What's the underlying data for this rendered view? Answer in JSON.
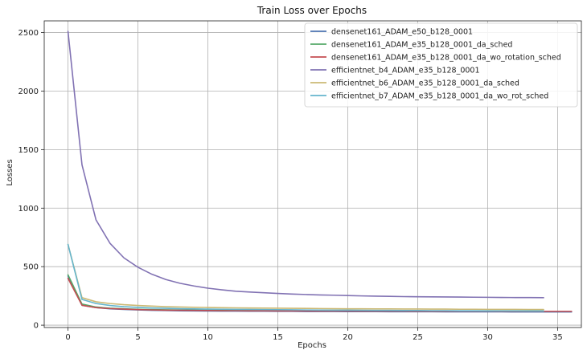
{
  "chart_data": {
    "type": "line",
    "title": "Train Loss over Epochs",
    "xlabel": "Epochs",
    "ylabel": "Losses",
    "xlim": [
      -1.7,
      36.7
    ],
    "ylim": [
      -20,
      2600
    ],
    "xticks": [
      0,
      5,
      10,
      15,
      20,
      25,
      30,
      35
    ],
    "yticks": [
      0,
      500,
      1000,
      1500,
      2000,
      2500
    ],
    "grid": true,
    "legend_position": "top-right",
    "series": [
      {
        "name": "densenet161_ADAM_e50_b128_0001",
        "color": "#4c72b0",
        "x": [
          0,
          1,
          2,
          3,
          4,
          5,
          6,
          7,
          8,
          9,
          10,
          11,
          12,
          13,
          14,
          15,
          16,
          17,
          18,
          19,
          20,
          21,
          22,
          23,
          24,
          25,
          26,
          27,
          28,
          29,
          30,
          31,
          32,
          33,
          34,
          35,
          36
        ],
        "y": [
          420,
          170,
          150,
          140,
          135,
          130,
          127,
          125,
          123,
          122,
          121,
          120,
          120,
          119,
          119,
          118,
          118,
          117,
          117,
          117,
          116,
          116,
          116,
          115,
          115,
          115,
          115,
          114,
          114,
          114,
          114,
          114,
          113,
          113,
          113,
          113,
          113
        ]
      },
      {
        "name": "densenet161_ADAM_e35_b128_0001_da_sched",
        "color": "#55a868",
        "x": [
          0,
          1,
          2,
          3,
          4,
          5,
          6,
          7,
          8,
          9,
          10,
          11,
          12,
          13,
          14,
          15,
          16,
          17,
          18,
          19,
          20,
          21,
          22,
          23,
          24,
          25,
          26,
          27,
          28,
          29,
          30,
          31,
          32,
          33,
          34
        ],
        "y": [
          430,
          180,
          155,
          145,
          140,
          136,
          133,
          131,
          130,
          129,
          128,
          127,
          127,
          126,
          126,
          125,
          125,
          125,
          124,
          124,
          124,
          123,
          123,
          123,
          123,
          122,
          122,
          122,
          122,
          122,
          122,
          121,
          121,
          121,
          121
        ]
      },
      {
        "name": "densenet161_ADAM_e35_b128_0001_da_wo_rotation_sched",
        "color": "#c44e52",
        "x": [
          0,
          1,
          2,
          3,
          4,
          5,
          6,
          7,
          8,
          9,
          10,
          11,
          12,
          13,
          14,
          15,
          16,
          17,
          18,
          19,
          20,
          21,
          22,
          23,
          24,
          25,
          26,
          27,
          28,
          29,
          30,
          31,
          32,
          33,
          34,
          35,
          36
        ],
        "y": [
          400,
          170,
          150,
          142,
          137,
          133,
          130,
          128,
          127,
          126,
          125,
          124,
          124,
          123,
          123,
          122,
          122,
          122,
          121,
          121,
          121,
          120,
          120,
          120,
          120,
          119,
          119,
          119,
          119,
          119,
          119,
          118,
          118,
          118,
          118,
          118,
          118
        ]
      },
      {
        "name": "efficientnet_b4_ADAM_e35_b128_0001",
        "color": "#8172b3",
        "x": [
          0,
          1,
          2,
          3,
          4,
          5,
          6,
          7,
          8,
          9,
          10,
          11,
          12,
          13,
          14,
          15,
          16,
          17,
          18,
          19,
          20,
          21,
          22,
          23,
          24,
          25,
          26,
          27,
          28,
          29,
          30,
          31,
          32,
          33,
          34
        ],
        "y": [
          2510,
          1370,
          900,
          700,
          575,
          495,
          435,
          390,
          358,
          335,
          316,
          302,
          290,
          283,
          277,
          271,
          266,
          262,
          258,
          256,
          253,
          250,
          248,
          246,
          244,
          243,
          242,
          241,
          240,
          239,
          238,
          237,
          236,
          236,
          235
        ]
      },
      {
        "name": "efficientnet_b6_ADAM_e35_b128_0001_da_sched",
        "color": "#ccb974",
        "x": [
          0,
          1,
          2,
          3,
          4,
          5,
          6,
          7,
          8,
          9,
          10,
          11,
          12,
          13,
          14,
          15,
          16,
          17,
          18,
          19,
          20,
          21,
          22,
          23,
          24,
          25,
          26,
          27,
          28,
          29,
          30,
          31,
          32,
          33,
          34
        ],
        "y": [
          690,
          235,
          200,
          185,
          175,
          168,
          163,
          158,
          155,
          153,
          151,
          149,
          148,
          147,
          146,
          145,
          144,
          143,
          142,
          141,
          140,
          140,
          139,
          139,
          138,
          138,
          137,
          137,
          136,
          136,
          135,
          135,
          135,
          134,
          134
        ]
      },
      {
        "name": "efficientnet_b7_ADAM_e35_b128_0001_da_wo_rot_sched",
        "color": "#64b5cd",
        "x": [
          0,
          1,
          2,
          3,
          4,
          5,
          6,
          7,
          8,
          9,
          10,
          11,
          12,
          13,
          14,
          15,
          16,
          17,
          18,
          19,
          20,
          21,
          22,
          23,
          24,
          25,
          26,
          27,
          28,
          29,
          30,
          31,
          32,
          33,
          34
        ],
        "y": [
          690,
          220,
          185,
          168,
          158,
          152,
          147,
          144,
          141,
          139,
          137,
          136,
          135,
          134,
          133,
          132,
          131,
          130,
          129,
          128,
          128,
          127,
          126,
          126,
          125,
          125,
          124,
          124,
          123,
          123,
          122,
          122,
          122,
          121,
          121
        ]
      }
    ]
  }
}
